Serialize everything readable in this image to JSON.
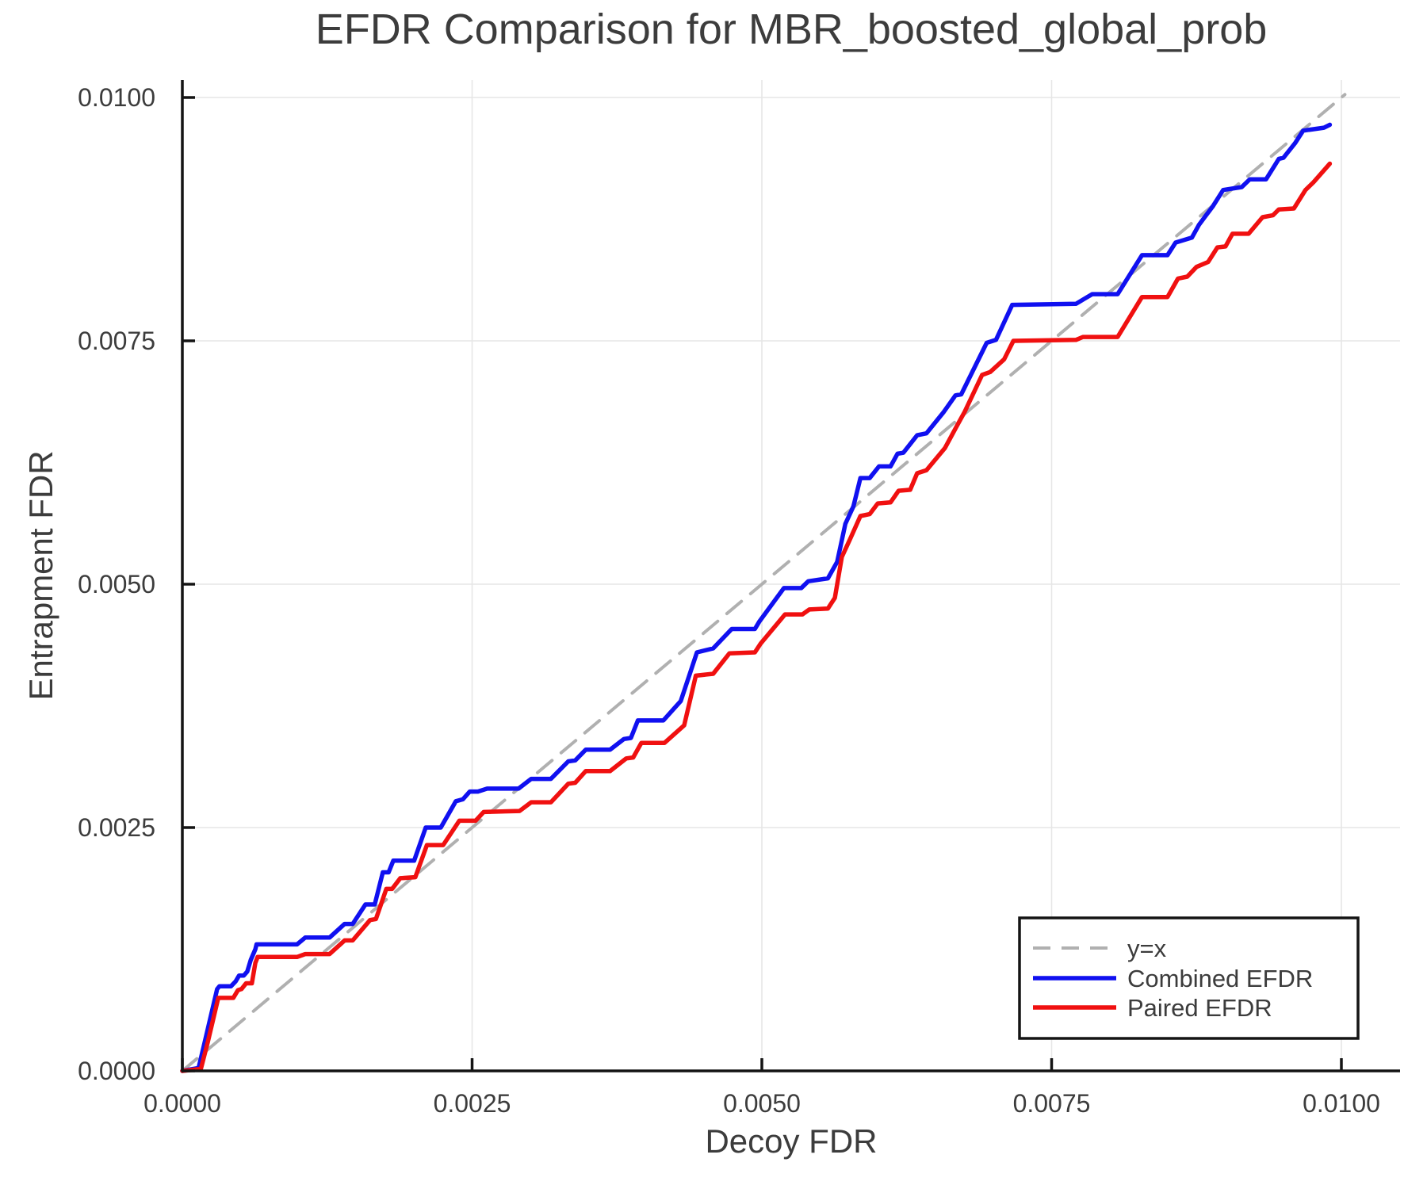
{
  "title": "EFDR Comparison for MBR_boosted_global_prob",
  "axes": {
    "xlabel": "Decoy FDR",
    "ylabel": "Entrapment FDR",
    "x_ticks": [
      {
        "value": 0.0,
        "label": "0.0000"
      },
      {
        "value": 0.0025,
        "label": "0.0025"
      },
      {
        "value": 0.005,
        "label": "0.0050"
      },
      {
        "value": 0.0075,
        "label": "0.0075"
      },
      {
        "value": 0.01,
        "label": "0.0100"
      }
    ],
    "y_ticks": [
      {
        "value": 0.0,
        "label": "0.0000"
      },
      {
        "value": 0.0025,
        "label": "0.0025"
      },
      {
        "value": 0.005,
        "label": "0.0050"
      },
      {
        "value": 0.0075,
        "label": "0.0075"
      },
      {
        "value": 0.01,
        "label": "0.0100"
      }
    ]
  },
  "colors": {
    "grid": "#e6e6e6",
    "spine": "#141414",
    "text": "#3c3c3c",
    "reference": "#b0b0b0",
    "combined": "#1010f0",
    "paired": "#f01010"
  },
  "chart_data": {
    "type": "line",
    "title": "EFDR Comparison for MBR_boosted_global_prob",
    "xlabel": "Decoy FDR",
    "ylabel": "Entrapment FDR",
    "xlim": [
      0,
      0.0105
    ],
    "ylim": [
      0,
      0.0102
    ],
    "grid": true,
    "legend_position": "lower right",
    "series": [
      {
        "name": "y=x",
        "color": "#b0b0b0",
        "style": "dashed",
        "points": [
          [
            0,
            0
          ],
          [
            0.01003,
            0.01003
          ]
        ]
      },
      {
        "name": "Combined EFDR",
        "color": "#1010f0",
        "style": "solid",
        "points": [
          [
            0.0,
            0.0
          ],
          [
            0.00014,
            3e-05
          ],
          [
            0.0002,
            0.00033
          ],
          [
            0.0003,
            0.00084
          ],
          [
            0.00032,
            0.00087
          ],
          [
            0.00042,
            0.00087
          ],
          [
            0.00046,
            0.00092
          ],
          [
            0.00049,
            0.00098
          ],
          [
            0.00053,
            0.00098
          ],
          [
            0.00056,
            0.00102
          ],
          [
            0.00059,
            0.00114
          ],
          [
            0.00063,
            0.00125
          ],
          [
            0.00064,
            0.0013
          ],
          [
            0.00099,
            0.0013
          ],
          [
            0.00106,
            0.00137
          ],
          [
            0.00127,
            0.00137
          ],
          [
            0.0014,
            0.00151
          ],
          [
            0.00147,
            0.00151
          ],
          [
            0.00158,
            0.00171
          ],
          [
            0.00166,
            0.00171
          ],
          [
            0.00173,
            0.00204
          ],
          [
            0.00178,
            0.00204
          ],
          [
            0.00182,
            0.00216
          ],
          [
            0.002,
            0.00216
          ],
          [
            0.0021,
            0.0025
          ],
          [
            0.00223,
            0.0025
          ],
          [
            0.00236,
            0.00277
          ],
          [
            0.00242,
            0.00279
          ],
          [
            0.00248,
            0.00287
          ],
          [
            0.00255,
            0.00287
          ],
          [
            0.00263,
            0.0029
          ],
          [
            0.0029,
            0.0029
          ],
          [
            0.00301,
            0.003
          ],
          [
            0.00318,
            0.003
          ],
          [
            0.00333,
            0.00318
          ],
          [
            0.00339,
            0.00319
          ],
          [
            0.00348,
            0.0033
          ],
          [
            0.00369,
            0.0033
          ],
          [
            0.00381,
            0.00341
          ],
          [
            0.00387,
            0.00342
          ],
          [
            0.00393,
            0.0036
          ],
          [
            0.00415,
            0.0036
          ],
          [
            0.0043,
            0.0038
          ],
          [
            0.00437,
            0.00405
          ],
          [
            0.00444,
            0.0043
          ],
          [
            0.00458,
            0.00434
          ],
          [
            0.00474,
            0.00454
          ],
          [
            0.00494,
            0.00454
          ],
          [
            0.00498,
            0.00462
          ],
          [
            0.00519,
            0.00496
          ],
          [
            0.00534,
            0.00496
          ],
          [
            0.0054,
            0.00503
          ],
          [
            0.00557,
            0.00506
          ],
          [
            0.00565,
            0.00523
          ],
          [
            0.00572,
            0.00562
          ],
          [
            0.00579,
            0.0058
          ],
          [
            0.00585,
            0.00609
          ],
          [
            0.00593,
            0.00609
          ],
          [
            0.00601,
            0.00621
          ],
          [
            0.00611,
            0.00621
          ],
          [
            0.00617,
            0.00634
          ],
          [
            0.00622,
            0.00635
          ],
          [
            0.00634,
            0.00653
          ],
          [
            0.00642,
            0.00655
          ],
          [
            0.00657,
            0.00677
          ],
          [
            0.00667,
            0.00694
          ],
          [
            0.00672,
            0.00695
          ],
          [
            0.00694,
            0.00748
          ],
          [
            0.00702,
            0.00751
          ],
          [
            0.00716,
            0.00787
          ],
          [
            0.00771,
            0.00788
          ],
          [
            0.00778,
            0.00793
          ],
          [
            0.00785,
            0.00798
          ],
          [
            0.00807,
            0.00798
          ],
          [
            0.00828,
            0.00838
          ],
          [
            0.0085,
            0.00838
          ],
          [
            0.00857,
            0.00851
          ],
          [
            0.00871,
            0.00856
          ],
          [
            0.00877,
            0.00869
          ],
          [
            0.00882,
            0.00877
          ],
          [
            0.00889,
            0.00888
          ],
          [
            0.00898,
            0.00905
          ],
          [
            0.00914,
            0.00908
          ],
          [
            0.00921,
            0.00916
          ],
          [
            0.00935,
            0.00916
          ],
          [
            0.00946,
            0.00937
          ],
          [
            0.0095,
            0.00938
          ],
          [
            0.0096,
            0.00953
          ],
          [
            0.00967,
            0.00966
          ],
          [
            0.00985,
            0.00969
          ],
          [
            0.0099,
            0.00972
          ]
        ]
      },
      {
        "name": "Paired EFDR",
        "color": "#f01010",
        "style": "solid",
        "points": [
          [
            0.0,
            0.0
          ],
          [
            0.00016,
            2e-05
          ],
          [
            0.00022,
            0.0003
          ],
          [
            0.00031,
            0.00075
          ],
          [
            0.00044,
            0.00075
          ],
          [
            0.00048,
            0.00083
          ],
          [
            0.00051,
            0.00084
          ],
          [
            0.00055,
            0.0009
          ],
          [
            0.0006,
            0.0009
          ],
          [
            0.00063,
            0.00111
          ],
          [
            0.00065,
            0.00117
          ],
          [
            0.00099,
            0.00117
          ],
          [
            0.00106,
            0.0012
          ],
          [
            0.00127,
            0.0012
          ],
          [
            0.0014,
            0.00134
          ],
          [
            0.00147,
            0.00134
          ],
          [
            0.00162,
            0.00155
          ],
          [
            0.00167,
            0.00156
          ],
          [
            0.00176,
            0.00187
          ],
          [
            0.00181,
            0.00187
          ],
          [
            0.00188,
            0.00198
          ],
          [
            0.00201,
            0.00199
          ],
          [
            0.00211,
            0.00232
          ],
          [
            0.00225,
            0.00232
          ],
          [
            0.00239,
            0.00257
          ],
          [
            0.00253,
            0.00257
          ],
          [
            0.0026,
            0.00266
          ],
          [
            0.00291,
            0.00267
          ],
          [
            0.00301,
            0.00276
          ],
          [
            0.00318,
            0.00276
          ],
          [
            0.00333,
            0.00295
          ],
          [
            0.00339,
            0.00296
          ],
          [
            0.00348,
            0.00308
          ],
          [
            0.00369,
            0.00308
          ],
          [
            0.00383,
            0.00321
          ],
          [
            0.00389,
            0.00322
          ],
          [
            0.00396,
            0.00337
          ],
          [
            0.00416,
            0.00337
          ],
          [
            0.00433,
            0.00355
          ],
          [
            0.00443,
            0.00406
          ],
          [
            0.00458,
            0.00408
          ],
          [
            0.00472,
            0.00429
          ],
          [
            0.00494,
            0.0043
          ],
          [
            0.00499,
            0.00439
          ],
          [
            0.0052,
            0.00469
          ],
          [
            0.00535,
            0.00469
          ],
          [
            0.00541,
            0.00474
          ],
          [
            0.00557,
            0.00475
          ],
          [
            0.00563,
            0.00486
          ],
          [
            0.00569,
            0.00528
          ],
          [
            0.00576,
            0.00546
          ],
          [
            0.00585,
            0.0057
          ],
          [
            0.00593,
            0.00572
          ],
          [
            0.006,
            0.00583
          ],
          [
            0.00611,
            0.00584
          ],
          [
            0.00618,
            0.00596
          ],
          [
            0.00628,
            0.00597
          ],
          [
            0.00634,
            0.00614
          ],
          [
            0.00642,
            0.00617
          ],
          [
            0.00658,
            0.0064
          ],
          [
            0.00668,
            0.00662
          ],
          [
            0.00675,
            0.00677
          ],
          [
            0.0069,
            0.00715
          ],
          [
            0.00697,
            0.00718
          ],
          [
            0.00709,
            0.00731
          ],
          [
            0.00717,
            0.0075
          ],
          [
            0.00771,
            0.00751
          ],
          [
            0.00777,
            0.00754
          ],
          [
            0.00807,
            0.00754
          ],
          [
            0.00828,
            0.00795
          ],
          [
            0.0085,
            0.00795
          ],
          [
            0.00859,
            0.00814
          ],
          [
            0.00867,
            0.00816
          ],
          [
            0.00875,
            0.00826
          ],
          [
            0.00885,
            0.00831
          ],
          [
            0.00893,
            0.00846
          ],
          [
            0.009,
            0.00847
          ],
          [
            0.00906,
            0.0086
          ],
          [
            0.0092,
            0.0086
          ],
          [
            0.00932,
            0.00877
          ],
          [
            0.00941,
            0.00879
          ],
          [
            0.00946,
            0.00885
          ],
          [
            0.00959,
            0.00886
          ],
          [
            0.00969,
            0.00905
          ],
          [
            0.00976,
            0.00913
          ],
          [
            0.0099,
            0.00932
          ]
        ]
      }
    ]
  }
}
